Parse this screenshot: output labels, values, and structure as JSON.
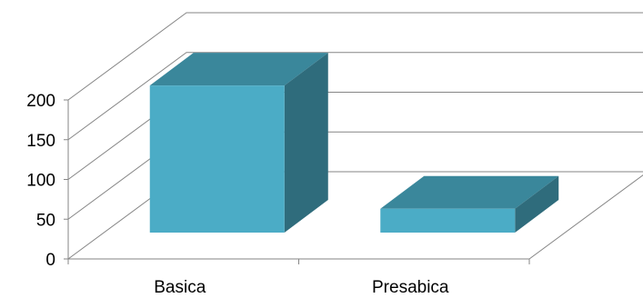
{
  "chart_data": {
    "type": "bar",
    "style": "3d-column",
    "categories": [
      "Basica",
      "Presabica"
    ],
    "values": [
      185,
      30
    ],
    "ylim": [
      0,
      200
    ],
    "yticks": [
      0,
      50,
      100,
      150,
      200
    ],
    "ytick_labels": [
      "0",
      "50",
      "100",
      "150",
      "200"
    ],
    "grid": true,
    "legend": "none",
    "colors": {
      "bar_front": "#4bacc6",
      "bar_top": "#3a879b",
      "bar_side": "#2f6c7c",
      "gridline": "#868686"
    }
  }
}
